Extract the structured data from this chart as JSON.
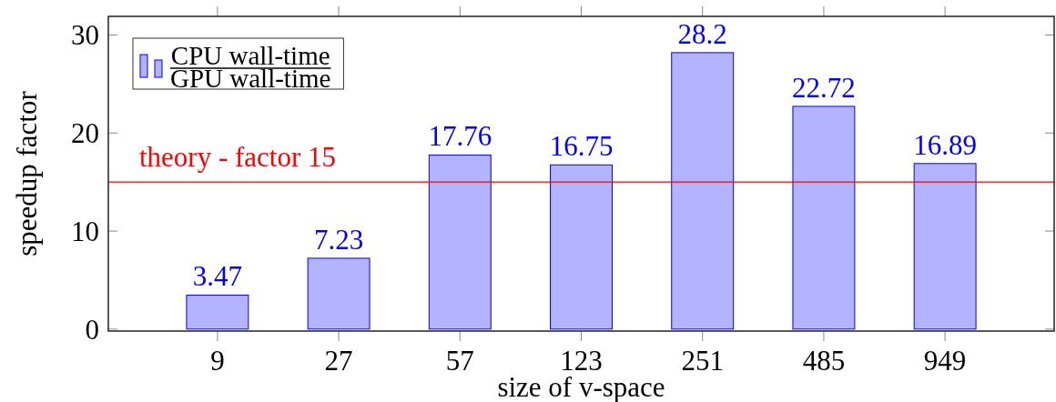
{
  "chart_data": {
    "type": "bar",
    "xlabel": "size of v-space",
    "ylabel": "speedup factor",
    "categories": [
      "9",
      "27",
      "57",
      "123",
      "251",
      "485",
      "949"
    ],
    "series": [
      {
        "name": "CPU wall-time\nGPU wall-time",
        "color": "#b3b3ff",
        "values": [
          3.47,
          7.23,
          17.76,
          16.75,
          28.2,
          22.72,
          16.89
        ]
      }
    ],
    "ylim": [
      -0.2,
      31.9
    ],
    "yticks": [
      0,
      10,
      20,
      30
    ],
    "data_labels": true,
    "legend": "top left",
    "ref_lines": [
      {
        "axis": "y",
        "value": 15,
        "label": "theory - factor 15",
        "color": "#ff0000"
      }
    ]
  }
}
